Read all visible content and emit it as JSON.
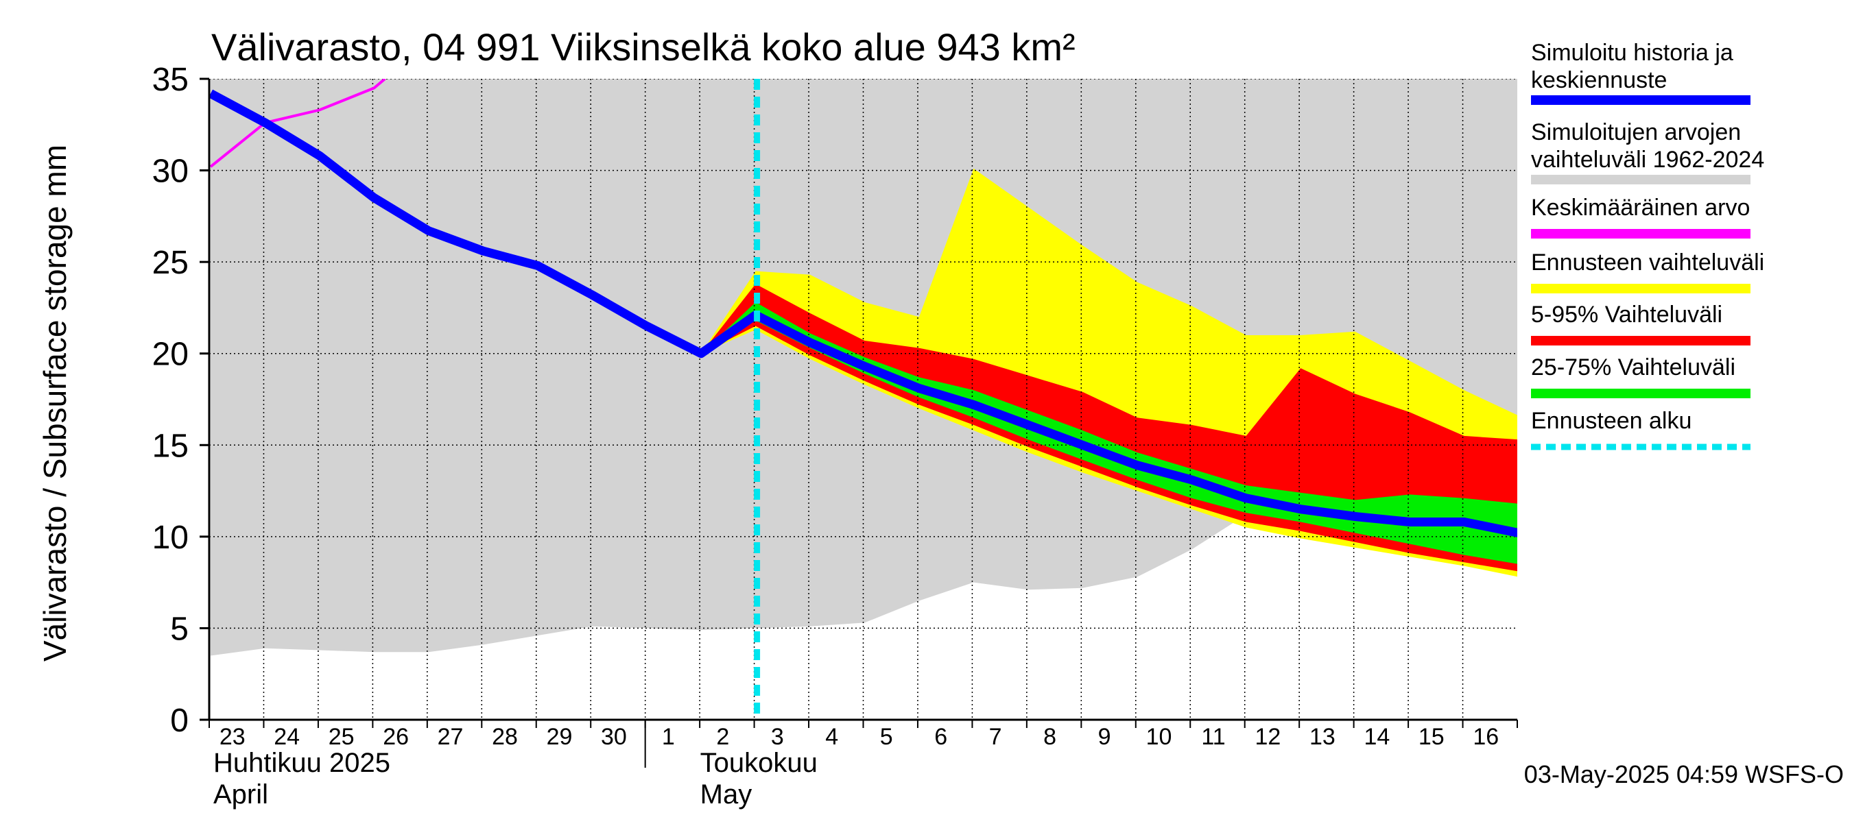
{
  "chart_data": {
    "type": "area",
    "title": "Välivarasto, 04 991 Viiksinselkä koko alue 943 km²",
    "ylabel": "Välivarasto / Subsurface storage  mm",
    "ylim": [
      0,
      35
    ],
    "yticks": [
      0,
      5,
      10,
      15,
      20,
      25,
      30,
      35
    ],
    "grid": true,
    "legend_position": "right",
    "x_day_labels": [
      "23",
      "24",
      "25",
      "26",
      "27",
      "28",
      "29",
      "30",
      "1",
      "2",
      "3",
      "4",
      "5",
      "6",
      "7",
      "8",
      "9",
      "10",
      "11",
      "12",
      "13",
      "14",
      "15",
      "16"
    ],
    "x_month_labels": [
      {
        "line1": "Huhtikuu  2025",
        "line2": "April"
      },
      {
        "line1": "Toukokuu",
        "line2": "May"
      }
    ],
    "footer": "03-May-2025 04:59 WSFS-O",
    "forecast_start_day": 10,
    "colors": {
      "history": "#0000ff",
      "range": "#d3d3d3",
      "mean": "#ff00ff",
      "forecast_range": "#ffff00",
      "p5_95": "#ff0000",
      "p25_75": "#00ee00",
      "forecast_start": "#00e5ee"
    },
    "series": {
      "hist_range": {
        "days": [
          0,
          1,
          2,
          3,
          4,
          5,
          6,
          7,
          8,
          9,
          10,
          11,
          12,
          13,
          14,
          15,
          16,
          17,
          18,
          19,
          20,
          21,
          22,
          23,
          24
        ],
        "lower": [
          3.5,
          3.9,
          3.8,
          3.7,
          3.7,
          4.1,
          4.6,
          5.1,
          5.0,
          4.9,
          5.0,
          5.1,
          5.3,
          6.5,
          7.5,
          7.1,
          7.2,
          7.8,
          9.3,
          11.2,
          13.5,
          15.0,
          15.5,
          15.5,
          15.5
        ],
        "upper": [
          35,
          35,
          35,
          35,
          35,
          35,
          35,
          35,
          35,
          35,
          35,
          35,
          35,
          35,
          35,
          35,
          35,
          35,
          35,
          35,
          35,
          35,
          35,
          35,
          35
        ]
      },
      "mean": {
        "days": [
          0,
          1,
          2,
          3,
          3.2
        ],
        "values": [
          30.2,
          32.6,
          33.3,
          34.5,
          35
        ]
      },
      "forecast_range": {
        "days": [
          9,
          10,
          11,
          12,
          13,
          14,
          15,
          16,
          17,
          18,
          19,
          20,
          21,
          22,
          23,
          24
        ],
        "lower": [
          20.0,
          21.3,
          19.7,
          18.3,
          17.0,
          15.8,
          14.6,
          13.5,
          12.5,
          11.5,
          10.5,
          9.9,
          9.4,
          8.9,
          8.4,
          7.8
        ],
        "upper": [
          20.0,
          24.5,
          24.3,
          22.8,
          22.0,
          30.1,
          28.0,
          25.9,
          23.9,
          22.6,
          21.0,
          21.0,
          21.2,
          19.6,
          18.0,
          16.6
        ]
      },
      "p5_95": {
        "days": [
          9,
          10,
          11,
          12,
          13,
          14,
          15,
          16,
          17,
          18,
          19,
          20,
          21,
          22,
          23,
          24
        ],
        "lower": [
          20.0,
          21.5,
          19.9,
          18.5,
          17.2,
          16.1,
          14.9,
          13.8,
          12.7,
          11.7,
          10.8,
          10.3,
          9.7,
          9.1,
          8.6,
          8.1
        ],
        "upper": [
          20.0,
          23.8,
          22.2,
          20.7,
          20.3,
          19.7,
          18.8,
          17.9,
          16.5,
          16.1,
          15.5,
          19.2,
          17.8,
          16.8,
          15.5,
          15.3
        ]
      },
      "p25_75": {
        "days": [
          9,
          10,
          11,
          12,
          13,
          14,
          15,
          16,
          17,
          18,
          19,
          20,
          21,
          22,
          23,
          24
        ],
        "lower": [
          20.0,
          21.8,
          20.3,
          18.9,
          17.6,
          16.5,
          15.3,
          14.2,
          13.1,
          12.1,
          11.3,
          10.8,
          10.2,
          9.6,
          9.0,
          8.5
        ],
        "upper": [
          20.0,
          22.8,
          21.1,
          19.8,
          18.7,
          18.0,
          16.9,
          15.8,
          14.6,
          13.7,
          12.8,
          12.4,
          12.0,
          12.3,
          12.1,
          11.8
        ]
      },
      "history": {
        "days": [
          0,
          1,
          2,
          3,
          4,
          5,
          6,
          7,
          8,
          9,
          10,
          11,
          12,
          13,
          14,
          15,
          16,
          17,
          18,
          19,
          20,
          21,
          22,
          23,
          24
        ],
        "values": [
          34.2,
          32.6,
          30.8,
          28.5,
          26.7,
          25.6,
          24.8,
          23.2,
          21.5,
          20.0,
          22.1,
          20.6,
          19.3,
          18.1,
          17.2,
          16.1,
          15.0,
          13.9,
          13.1,
          12.1,
          11.5,
          11.1,
          10.8,
          10.8,
          10.2
        ]
      }
    }
  },
  "legend": {
    "items": [
      {
        "line1": "Simuloitu historia ja",
        "line2": "keskiennuste",
        "color": "#0000ff",
        "style": "solid"
      },
      {
        "line1": "Simuloitujen arvojen",
        "line2": "vaihteluväli 1962-2024",
        "color": "#d3d3d3",
        "style": "solid"
      },
      {
        "line1": "Keskimääräinen arvo",
        "line2": "",
        "color": "#ff00ff",
        "style": "solid"
      },
      {
        "line1": "Ennusteen vaihteluväli",
        "line2": "",
        "color": "#ffff00",
        "style": "solid"
      },
      {
        "line1": "5-95% Vaihteluväli",
        "line2": "",
        "color": "#ff0000",
        "style": "solid"
      },
      {
        "line1": "25-75% Vaihteluväli",
        "line2": "",
        "color": "#00ee00",
        "style": "solid"
      },
      {
        "line1": "Ennusteen alku",
        "line2": "",
        "color": "#00e5ee",
        "style": "dashed"
      }
    ]
  }
}
